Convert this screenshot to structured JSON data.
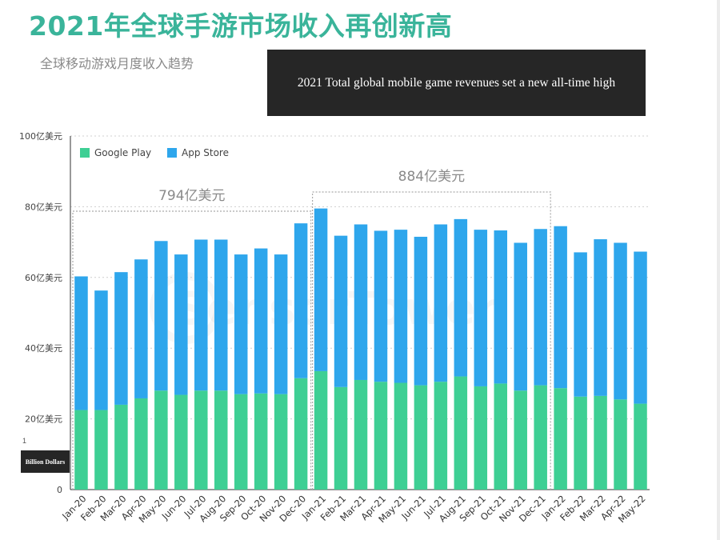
{
  "header": {
    "title": "2021年全球手游市场收入再创新高",
    "subtitle": "全球移动游戏月度收入趋势"
  },
  "overlays": {
    "english_title": "2021 Total global mobile game revenues set a new all-time high",
    "unit_label": "Billion Dollars",
    "stray_tick": "1"
  },
  "chart_data": {
    "type": "bar",
    "stacked": true,
    "categories": [
      "Jan-20",
      "Feb-20",
      "Mar-20",
      "Apr-20",
      "May-20",
      "Jun-20",
      "Jul-20",
      "Aug-20",
      "Sep-20",
      "Oct-20",
      "Nov-20",
      "Dec-20",
      "Jan-21",
      "Feb-21",
      "Mar-21",
      "Apr-21",
      "May-21",
      "Jun-21",
      "Jul-21",
      "Aug-21",
      "Sep-21",
      "Oct-21",
      "Nov-21",
      "Dec-21",
      "Jan-22",
      "Feb-22",
      "Mar-22",
      "Apr-22",
      "May-22"
    ],
    "series": [
      {
        "name": "Google Play",
        "color": "#3ecf94",
        "values": [
          22.5,
          22.5,
          24,
          25.8,
          28,
          26.8,
          28,
          28,
          27,
          27.2,
          27,
          31.5,
          33.5,
          29,
          31,
          30.5,
          30.2,
          29.5,
          30.5,
          32,
          29.2,
          30,
          28,
          29.5,
          28.7,
          26.3,
          26.5,
          25.5,
          24.3
        ]
      },
      {
        "name": "App Store",
        "color": "#2ea6ec",
        "values": [
          37.8,
          33.8,
          37.5,
          39.3,
          42.3,
          39.7,
          42.7,
          42.7,
          39.5,
          41,
          39.5,
          43.8,
          46,
          42.8,
          44,
          42.7,
          43.3,
          42,
          44.5,
          44.5,
          44.3,
          43.3,
          41.8,
          44.2,
          45.8,
          40.8,
          44.3,
          44.3,
          43
        ]
      }
    ],
    "ylim": [
      0,
      100
    ],
    "yticks": [
      {
        "value": 0,
        "label": "0"
      },
      {
        "value": 20,
        "label": "20亿美元"
      },
      {
        "value": 40,
        "label": "40亿美元"
      },
      {
        "value": 60,
        "label": "60亿美元"
      },
      {
        "value": 80,
        "label": "80亿美元"
      },
      {
        "value": 100,
        "label": "100亿美元"
      }
    ],
    "grid": true,
    "legend_position": "top-left",
    "annotations": [
      {
        "label": "794亿美元",
        "from": "Jan-20",
        "to": "Dec-20"
      },
      {
        "label": "884亿美元",
        "from": "Jan-21",
        "to": "Dec-21"
      }
    ],
    "watermark": "SensorTower"
  }
}
